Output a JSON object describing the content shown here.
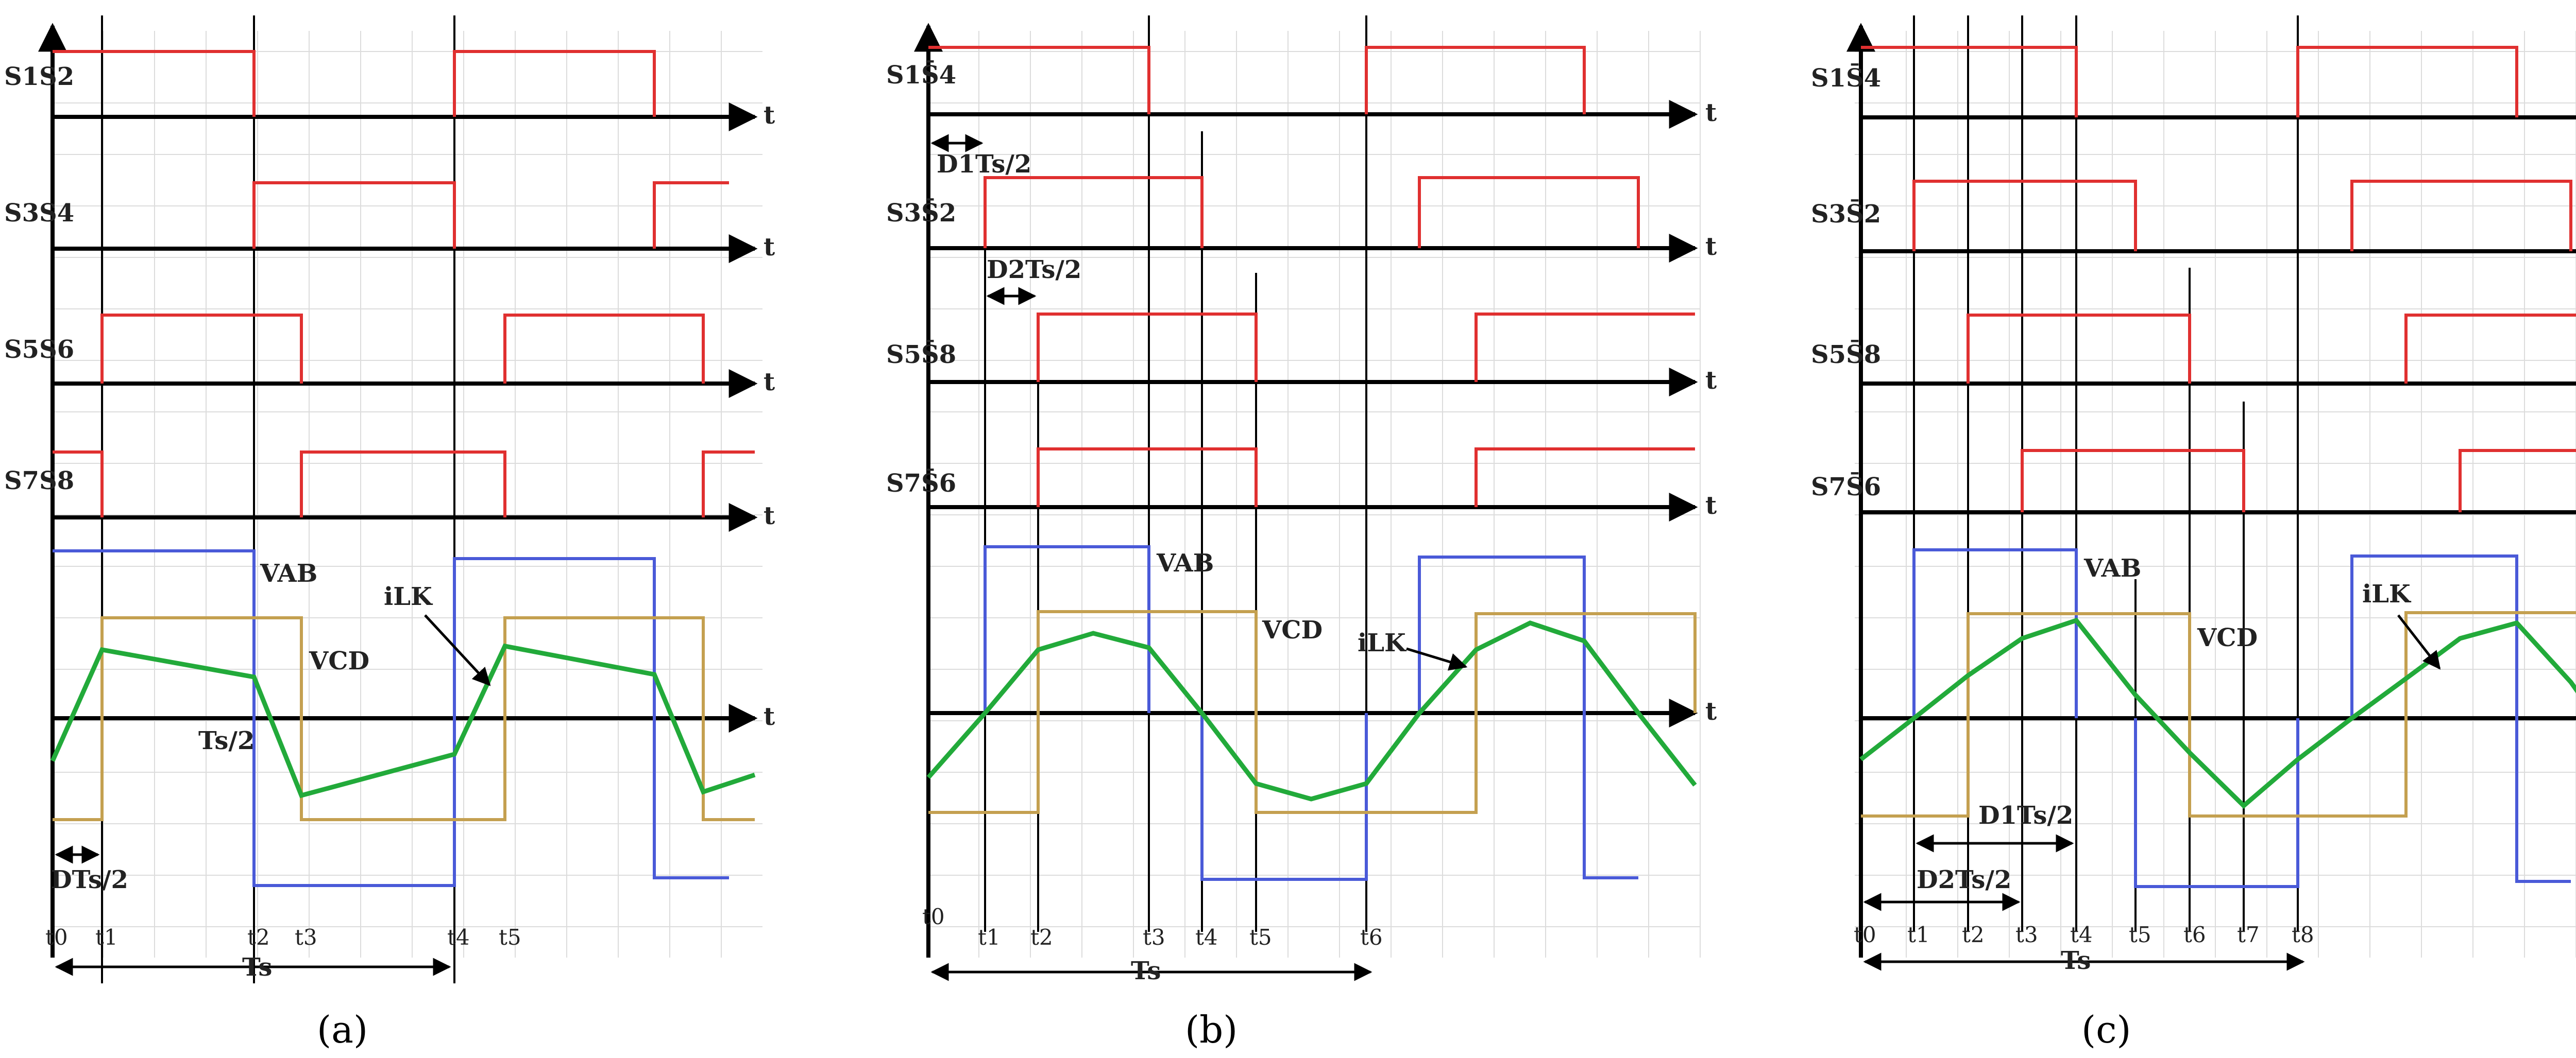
{
  "axis_label": "t",
  "panels": [
    {
      "caption": "(a)",
      "signals": [
        "S1S2",
        "S3S4",
        "S5S6",
        "S7S8"
      ],
      "wave_labels": {
        "vab": "VAB",
        "vcd": "VCD",
        "ilk": "iLK"
      },
      "annotations": {
        "half_period": "Ts/2",
        "shift": "DTs/2",
        "period": "Ts"
      },
      "time_labels": [
        "t0",
        "t1",
        "t2",
        "t3",
        "t4",
        "t5"
      ]
    },
    {
      "caption": "(b)",
      "signals": [
        "S1S̄4",
        "S3S̄2",
        "S5S̄8",
        "S7S̄6"
      ],
      "wave_labels": {
        "vab": "VAB",
        "vcd": "VCD",
        "ilk": "iLK"
      },
      "annotations": {
        "shift1": "D1Ts/2",
        "shift2": "D2Ts/2",
        "period": "Ts"
      },
      "time_labels": [
        "t0",
        "t1",
        "t2",
        "t3",
        "t4",
        "t5",
        "t6"
      ]
    },
    {
      "caption": "(c)",
      "signals": [
        "S1S̄4",
        "S3S̄2",
        "S5S̄8",
        "S7S̄6"
      ],
      "wave_labels": {
        "vab": "VAB",
        "vcd": "VCD",
        "ilk": "iLK"
      },
      "annotations": {
        "shift1": "D1Ts/2",
        "shift2": "D2Ts/2",
        "period": "Ts"
      },
      "time_labels": [
        "t0",
        "t1",
        "t2",
        "t3",
        "t4",
        "t5",
        "t6",
        "t7",
        "t8"
      ]
    }
  ]
}
